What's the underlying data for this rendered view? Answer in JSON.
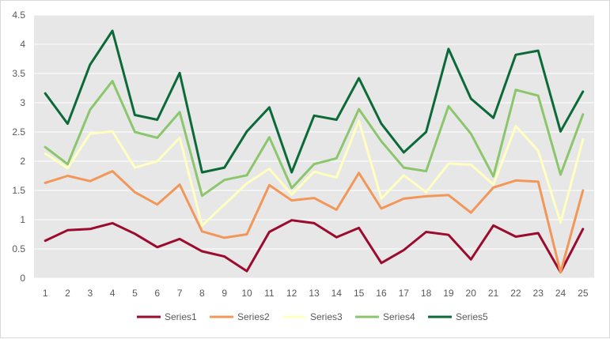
{
  "chart_data": {
    "type": "line",
    "title": "",
    "xlabel": "",
    "ylabel": "",
    "categories": [
      "1",
      "2",
      "3",
      "4",
      "5",
      "6",
      "7",
      "8",
      "9",
      "10",
      "11",
      "12",
      "13",
      "14",
      "15",
      "16",
      "17",
      "18",
      "19",
      "20",
      "21",
      "22",
      "23",
      "24",
      "25"
    ],
    "ylim": [
      0,
      4.5
    ],
    "y_ticks": [
      "0",
      "0.5",
      "1",
      "1.5",
      "2",
      "2.5",
      "3",
      "3.5",
      "4",
      "4.5"
    ],
    "grid": "horizontal",
    "legend_position": "bottom",
    "plot_background": "#e7e7e7",
    "series": [
      {
        "name": "Series1",
        "color": "#9b0b2e",
        "values": [
          0.64,
          0.82,
          0.84,
          0.94,
          0.76,
          0.53,
          0.67,
          0.46,
          0.37,
          0.12,
          0.79,
          0.99,
          0.94,
          0.7,
          0.86,
          0.26,
          0.48,
          0.79,
          0.74,
          0.32,
          0.9,
          0.71,
          0.77,
          0.1,
          0.84
        ]
      },
      {
        "name": "Series2",
        "color": "#f2975a",
        "values": [
          1.63,
          1.75,
          1.66,
          1.83,
          1.47,
          1.26,
          1.6,
          0.8,
          0.69,
          0.75,
          1.59,
          1.33,
          1.37,
          1.17,
          1.8,
          1.19,
          1.36,
          1.4,
          1.42,
          1.12,
          1.55,
          1.67,
          1.65,
          0.1,
          1.5
        ]
      },
      {
        "name": "Series3",
        "color": "#ffffc2",
        "values": [
          2.13,
          1.88,
          2.47,
          2.51,
          1.89,
          2.0,
          2.4,
          0.9,
          1.26,
          1.62,
          1.87,
          1.43,
          1.82,
          1.72,
          2.69,
          1.36,
          1.76,
          1.47,
          1.96,
          1.94,
          1.6,
          2.6,
          2.18,
          0.95,
          2.37
        ]
      },
      {
        "name": "Series4",
        "color": "#8cc66c",
        "values": [
          2.24,
          1.95,
          2.88,
          3.37,
          2.5,
          2.4,
          2.84,
          1.41,
          1.68,
          1.76,
          2.41,
          1.54,
          1.95,
          2.05,
          2.89,
          2.34,
          1.89,
          1.83,
          2.94,
          2.47,
          1.74,
          3.22,
          3.12,
          1.77,
          2.8
        ]
      },
      {
        "name": "Series5",
        "color": "#0b6a38",
        "values": [
          3.16,
          2.64,
          3.65,
          4.23,
          2.79,
          2.71,
          3.51,
          1.81,
          1.89,
          2.51,
          2.92,
          1.81,
          2.78,
          2.71,
          3.42,
          2.64,
          2.15,
          2.5,
          3.92,
          3.07,
          2.74,
          3.82,
          3.89,
          2.51,
          3.19
        ]
      }
    ]
  }
}
